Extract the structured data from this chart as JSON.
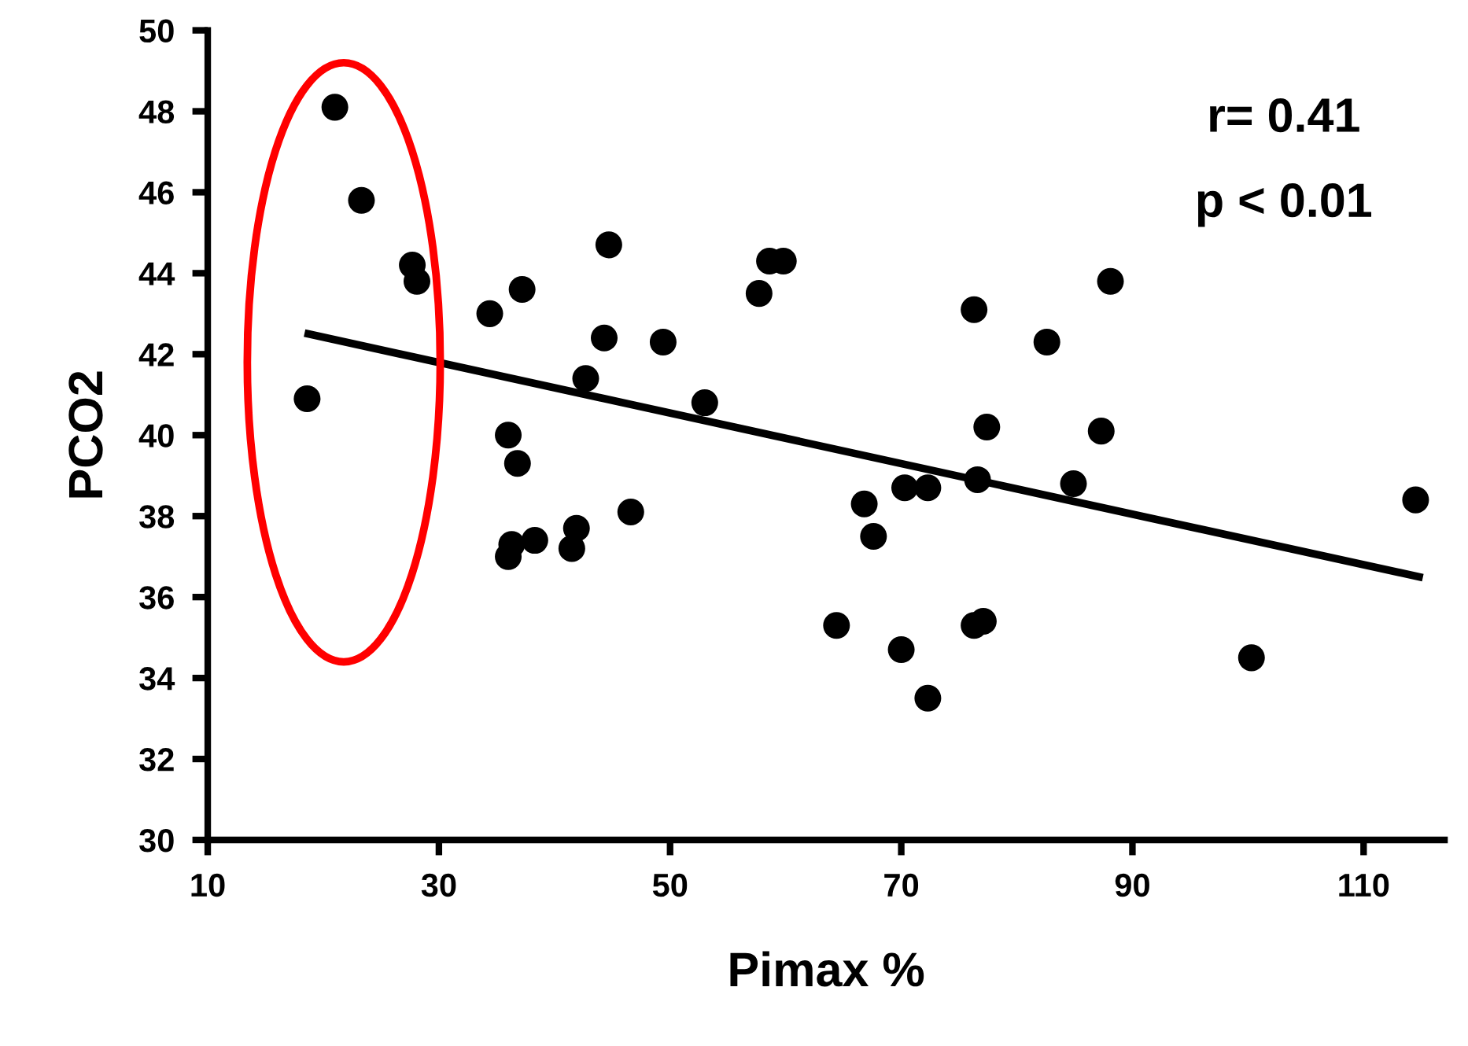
{
  "chart_data": {
    "type": "scatter",
    "xlabel": "Pimax %",
    "ylabel": "PCO2",
    "xlim": [
      10,
      117
    ],
    "xticks": [
      10,
      30,
      50,
      70,
      90,
      110
    ],
    "ylim": [
      30,
      50
    ],
    "yticks": [
      30,
      32,
      34,
      36,
      38,
      40,
      42,
      44,
      46,
      48,
      50
    ],
    "grid": false,
    "legend": false,
    "annotations": [
      "r= 0.41",
      "p < 0.01"
    ],
    "series": [
      {
        "marker": "circle",
        "color": "#000000",
        "x": [
          21.0,
          23.3,
          27.7,
          28.1,
          18.6,
          44.7,
          37.2,
          34.4,
          44.3,
          49.4,
          42.7,
          36.0,
          36.8,
          46.6,
          41.9,
          41.5,
          38.3,
          36.3,
          36.0,
          53.0,
          58.6,
          59.8,
          57.7,
          76.3,
          88.1,
          82.6,
          77.4,
          87.3,
          76.6,
          70.3,
          72.3,
          84.9,
          66.8,
          67.6,
          114.5,
          64.4,
          70.0,
          72.3,
          76.3,
          77.1,
          100.3
        ],
        "values": [
          48.1,
          45.8,
          44.2,
          43.8,
          40.9,
          44.7,
          43.6,
          43.0,
          42.4,
          42.3,
          41.4,
          40.0,
          39.3,
          38.1,
          37.7,
          37.2,
          37.4,
          37.3,
          37.0,
          40.8,
          44.3,
          44.3,
          43.5,
          43.1,
          43.8,
          42.3,
          40.2,
          40.1,
          38.9,
          38.7,
          38.7,
          38.8,
          38.3,
          37.5,
          38.4,
          35.3,
          34.7,
          33.5,
          35.3,
          35.4,
          34.5
        ]
      },
      {
        "type": "line",
        "marker": "none",
        "color": "#000000",
        "line_style": "solid",
        "x": [
          18.7,
          114.8
        ],
        "values": [
          42.5,
          36.5
        ]
      }
    ]
  }
}
